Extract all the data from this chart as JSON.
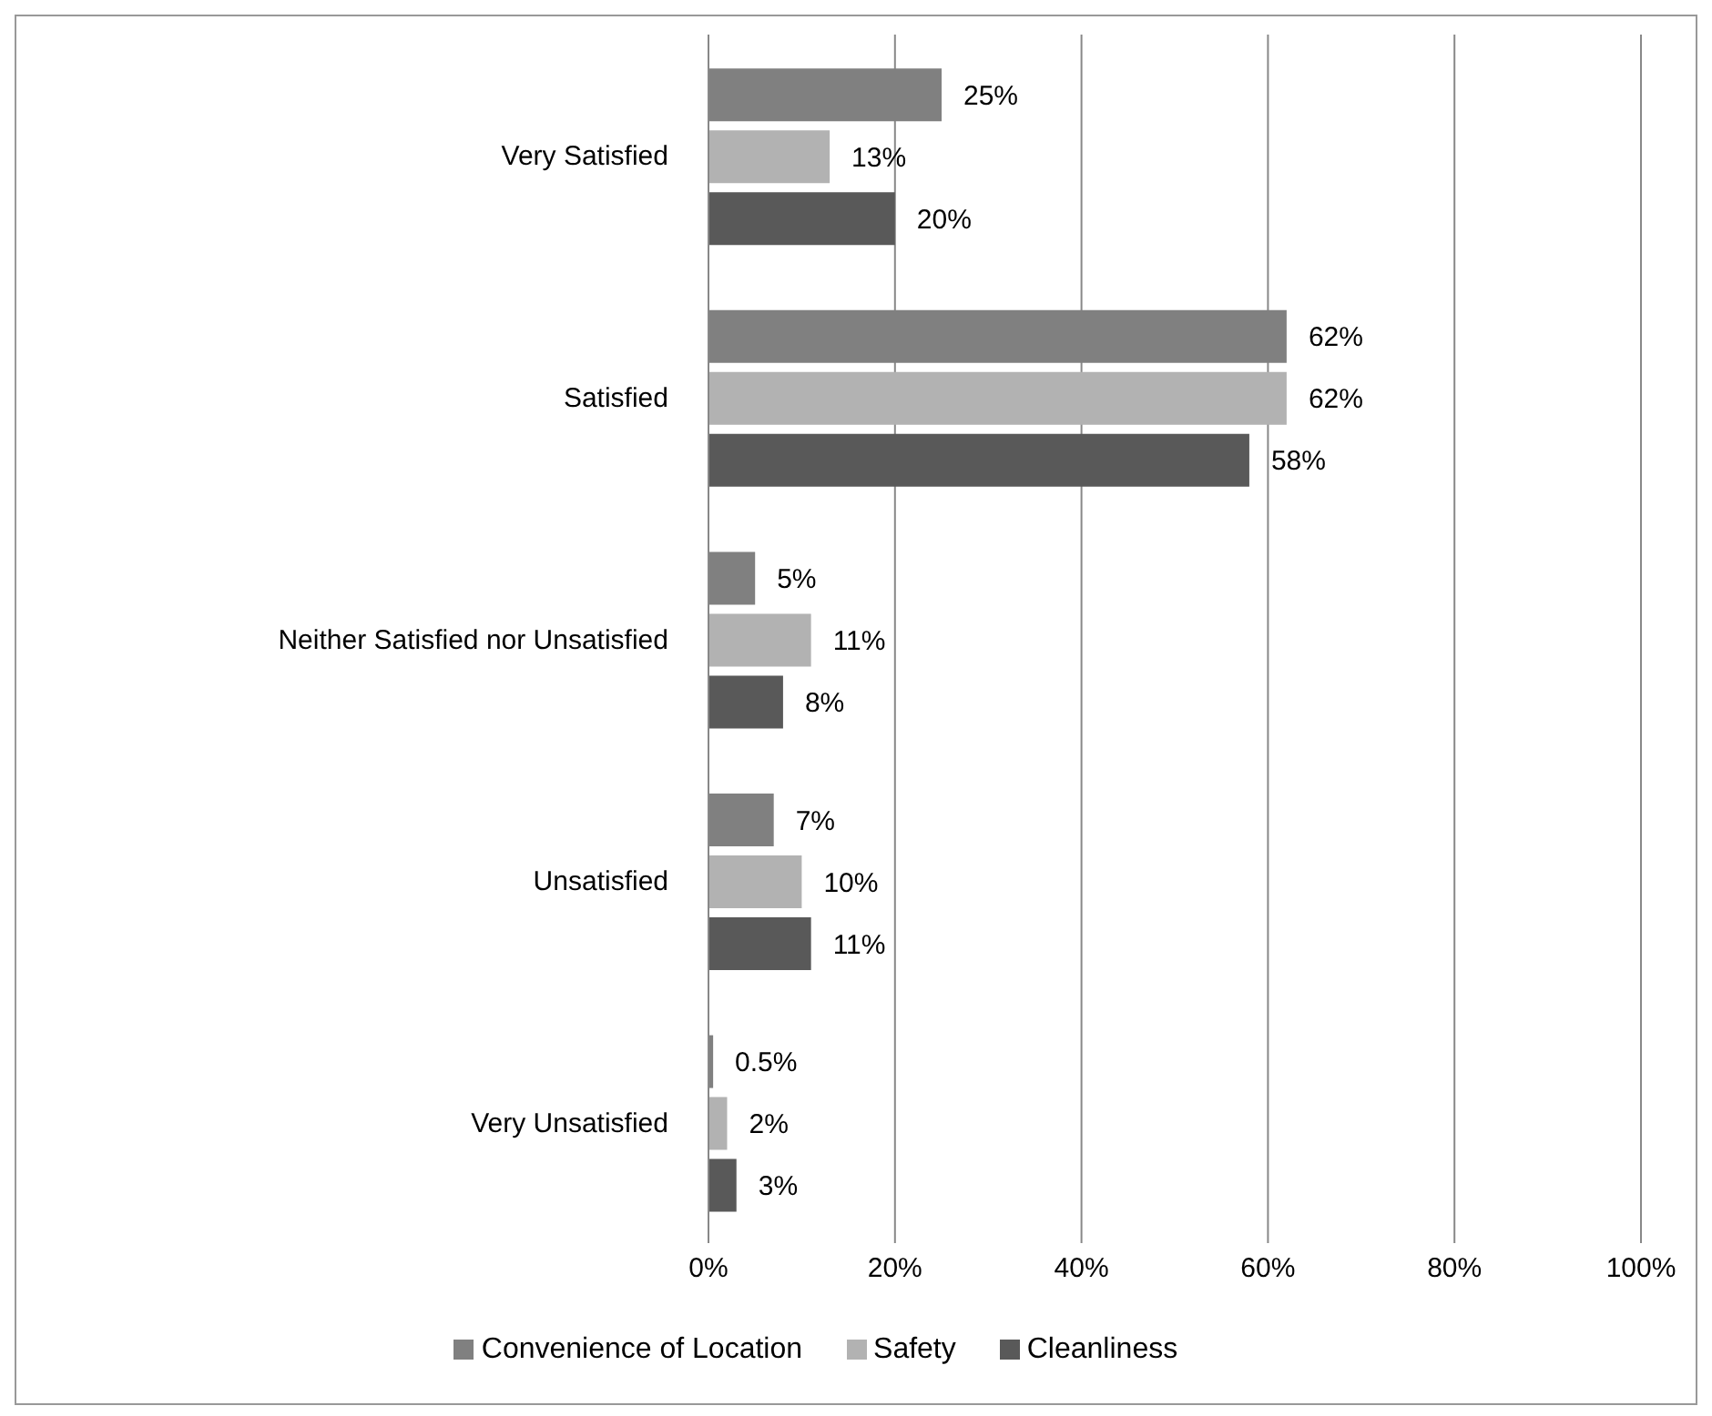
{
  "chart_data": {
    "type": "bar",
    "orientation": "horizontal",
    "categories": [
      "Very Satisfied",
      "Satisfied",
      "Neither Satisfied nor Unsatisfied",
      "Unsatisfied",
      "Very Unsatisfied"
    ],
    "series": [
      {
        "name": "Convenience of Location",
        "color": "#808080",
        "values": [
          25,
          62,
          5,
          7,
          0.5
        ],
        "value_labels": [
          "25%",
          "62%",
          "5%",
          "7%",
          "0.5%"
        ]
      },
      {
        "name": "Safety",
        "color": "#b2b2b2",
        "values": [
          13,
          62,
          11,
          10,
          2
        ],
        "value_labels": [
          "13%",
          "62%",
          "11%",
          "10%",
          "2%"
        ]
      },
      {
        "name": "Cleanliness",
        "color": "#595959",
        "values": [
          20,
          58,
          8,
          11,
          3
        ],
        "value_labels": [
          "20%",
          "58%",
          "8%",
          "11%",
          "3%"
        ]
      }
    ],
    "xlim": [
      0,
      100
    ],
    "xticks": [
      {
        "value": 0,
        "label": "0%"
      },
      {
        "value": 20,
        "label": "20%"
      },
      {
        "value": 40,
        "label": "40%"
      },
      {
        "value": 60,
        "label": "60%"
      },
      {
        "value": 80,
        "label": "80%"
      },
      {
        "value": 100,
        "label": "100%"
      }
    ],
    "grid": "x",
    "legend": "bottom"
  }
}
